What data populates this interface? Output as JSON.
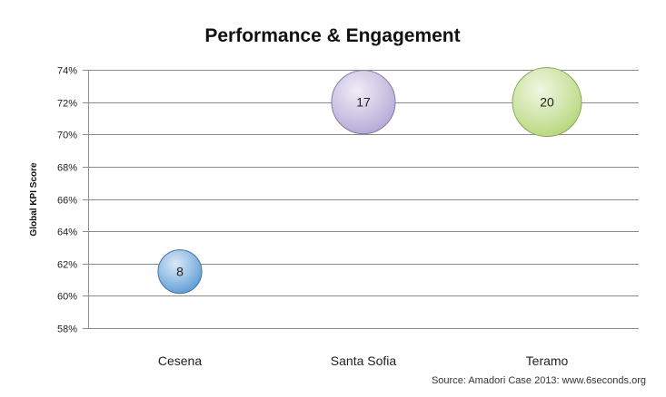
{
  "chart_data": {
    "type": "bubble",
    "title": "Performance & Engagement",
    "ylabel": "Global KPI Score",
    "xlabel": "",
    "categories": [
      "Cesena",
      "Santa Sofia",
      "Teramo"
    ],
    "yticks": [
      "58%",
      "60%",
      "62%",
      "64%",
      "66%",
      "68%",
      "70%",
      "72%",
      "74%"
    ],
    "ylim": [
      58,
      74
    ],
    "grid": true,
    "points": [
      {
        "category": "Cesena",
        "y": 61.5,
        "size": 8,
        "label": "8",
        "color": "#5b9bd5"
      },
      {
        "category": "Santa Sofia",
        "y": 72,
        "size": 17,
        "label": "17",
        "color": "#b4a7d6"
      },
      {
        "category": "Teramo",
        "y": 72,
        "size": 20,
        "label": "20",
        "color": "#b6d77a"
      }
    ],
    "source": "Source: Amadori Case 2013: www.6seconds.org"
  }
}
